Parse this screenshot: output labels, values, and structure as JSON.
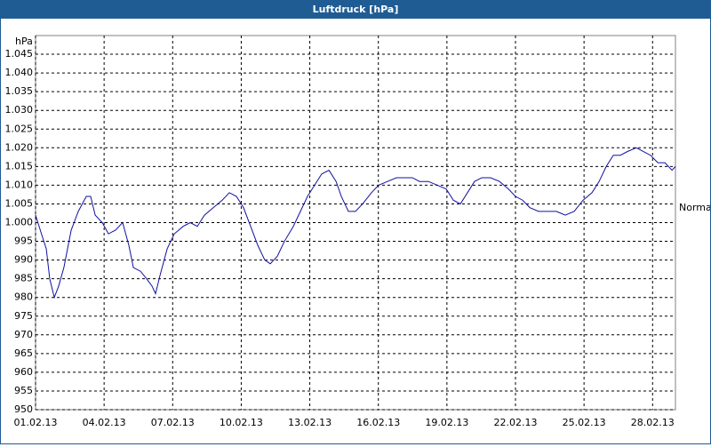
{
  "chart_data": {
    "type": "line",
    "title": "Luftdruck [hPa]",
    "y_label": "hPa",
    "annotation": "Normal",
    "xlim": [
      0,
      28
    ],
    "ylim": [
      950,
      1050
    ],
    "grid": true,
    "xticks": [
      {
        "value": 0,
        "label": "01.02.13"
      },
      {
        "value": 3,
        "label": "04.02.13"
      },
      {
        "value": 6,
        "label": "07.02.13"
      },
      {
        "value": 9,
        "label": "10.02.13"
      },
      {
        "value": 12,
        "label": "13.02.13"
      },
      {
        "value": 15,
        "label": "16.02.13"
      },
      {
        "value": 18,
        "label": "19.02.13"
      },
      {
        "value": 21,
        "label": "22.02.13"
      },
      {
        "value": 24,
        "label": "25.02.13"
      },
      {
        "value": 27,
        "label": "28.02.13"
      }
    ],
    "yticks": [
      950,
      955,
      960,
      965,
      970,
      975,
      980,
      985,
      990,
      995,
      {
        "value": 1000,
        "label": "1.000"
      },
      {
        "value": 1005,
        "label": "1.005"
      },
      {
        "value": 1010,
        "label": "1.010"
      },
      {
        "value": 1015,
        "label": "1.015"
      },
      {
        "value": 1020,
        "label": "1.020"
      },
      {
        "value": 1025,
        "label": "1.025"
      },
      {
        "value": 1030,
        "label": "1.030"
      },
      {
        "value": 1035,
        "label": "1.035"
      },
      {
        "value": 1040,
        "label": "1.040"
      },
      {
        "value": 1045,
        "label": "1.045"
      }
    ],
    "series": [
      {
        "name": "Luftdruck",
        "color": "#1010a0",
        "x": [
          0,
          0.31,
          0.47,
          0.62,
          0.82,
          1.01,
          1.24,
          1.56,
          1.87,
          2.22,
          2.41,
          2.61,
          2.92,
          3.19,
          3.5,
          3.81,
          4.08,
          4.28,
          4.59,
          4.86,
          5.1,
          5.25,
          5.45,
          5.76,
          6.07,
          6.46,
          6.77,
          7.08,
          7.39,
          7.78,
          8.17,
          8.48,
          8.79,
          9.1,
          9.41,
          9.72,
          10.03,
          10.27,
          10.58,
          10.89,
          11.28,
          11.59,
          11.9,
          12.21,
          12.52,
          12.84,
          13.15,
          13.38,
          13.69,
          14,
          14.31,
          14.7,
          15.01,
          15.4,
          15.79,
          16.18,
          16.49,
          16.8,
          17.19,
          17.58,
          17.97,
          18.28,
          18.59,
          18.9,
          19.21,
          19.53,
          19.91,
          20.3,
          20.69,
          21,
          21.31,
          21.63,
          22.01,
          22.4,
          22.79,
          23.18,
          23.57,
          23.96,
          24.35,
          24.66,
          24.97,
          25.28,
          25.59,
          25.9,
          26.29,
          26.6,
          26.91,
          27.23,
          27.54,
          27.85,
          28
        ],
        "values": [
          1002,
          996,
          993,
          985,
          980,
          983,
          988,
          998,
          1003,
          1007,
          1007,
          1002,
          1000,
          997,
          998,
          1000,
          994,
          988,
          987,
          985,
          983,
          981,
          986,
          993,
          997,
          999,
          1000,
          999,
          1002,
          1004,
          1006,
          1008,
          1007,
          1004,
          999,
          994,
          990,
          989,
          991,
          995,
          999,
          1003,
          1007,
          1010,
          1013,
          1014,
          1011,
          1007,
          1003,
          1003,
          1005,
          1008,
          1010,
          1011,
          1012,
          1012,
          1012,
          1011,
          1011,
          1010,
          1009,
          1006,
          1005,
          1008,
          1011,
          1012,
          1012,
          1011,
          1009,
          1007,
          1006,
          1004,
          1003,
          1003,
          1003,
          1002,
          1003,
          1006,
          1008,
          1011,
          1015,
          1018,
          1018,
          1019,
          1020,
          1019,
          1018,
          1016,
          1016,
          1014,
          1015
        ]
      }
    ]
  }
}
